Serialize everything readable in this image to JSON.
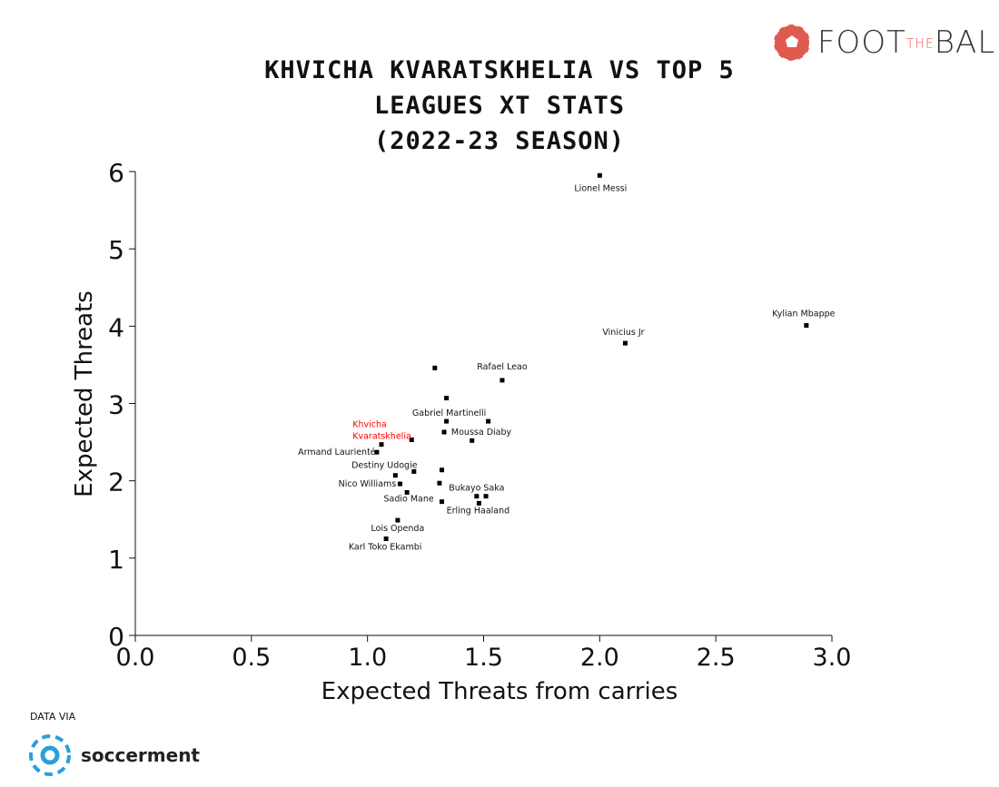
{
  "title_lines": [
    "KHVICHA KVARATSKHELIA VS TOP 5",
    "LEAGUES XT STATS",
    "(2022-23 SEASON)"
  ],
  "brand": {
    "left": "FOOT",
    "middle": "THE",
    "right": "BALL",
    "color": "#e05a4f"
  },
  "footer": {
    "data_via": "DATA VIA",
    "source": "soccerment",
    "source_color": "#2a9fd8"
  },
  "chart_data": {
    "type": "scatter",
    "title": "KHVICHA KVARATSKHELIA VS TOP 5 LEAGUES XT STATS (2022-23 SEASON)",
    "xlabel": "Expected Threats from carries",
    "ylabel": "Expected Threats",
    "xlim": [
      0,
      3.0
    ],
    "ylim": [
      0,
      6
    ],
    "xticks": [
      "0.0",
      "0.5",
      "1.0",
      "1.5",
      "2.0",
      "2.5",
      "3.0"
    ],
    "yticks": [
      "0",
      "1",
      "2",
      "3",
      "4",
      "5",
      "6"
    ],
    "grid": false,
    "highlight_color": "#ff0000",
    "points": [
      {
        "label": "Lionel Messi",
        "x": 2.0,
        "y": 5.95
      },
      {
        "label": "Kylian Mbappe",
        "x": 2.89,
        "y": 4.01
      },
      {
        "label": "Vinicius Jr",
        "x": 2.11,
        "y": 3.78
      },
      {
        "label": "",
        "x": 1.29,
        "y": 3.46
      },
      {
        "label": "Rafael Leao",
        "x": 1.58,
        "y": 3.3
      },
      {
        "label": "",
        "x": 1.34,
        "y": 3.07
      },
      {
        "label": "Gabriel Martinelli",
        "x": 1.34,
        "y": 2.77
      },
      {
        "label": "",
        "x": 1.52,
        "y": 2.77
      },
      {
        "label": "Moussa Diaby",
        "x": 1.33,
        "y": 2.63
      },
      {
        "label": "",
        "x": 1.45,
        "y": 2.52
      },
      {
        "label": "Khvicha Kvaratskhelia",
        "x": 1.19,
        "y": 2.53,
        "highlight": true
      },
      {
        "label": "",
        "x": 1.06,
        "y": 2.47
      },
      {
        "label": "Armand Laurienté",
        "x": 1.04,
        "y": 2.37
      },
      {
        "label": "",
        "x": 1.2,
        "y": 2.12
      },
      {
        "label": "",
        "x": 1.32,
        "y": 2.14
      },
      {
        "label": "Destiny Udogie",
        "x": 1.12,
        "y": 2.07
      },
      {
        "label": "",
        "x": 1.31,
        "y": 1.97
      },
      {
        "label": "Nico Williams",
        "x": 1.14,
        "y": 1.96
      },
      {
        "label": "Sadio Mane",
        "x": 1.17,
        "y": 1.85
      },
      {
        "label": "",
        "x": 1.32,
        "y": 1.73
      },
      {
        "label": "Bukayo Saka",
        "x": 1.47,
        "y": 1.8
      },
      {
        "label": "",
        "x": 1.51,
        "y": 1.8
      },
      {
        "label": "Erling Haaland",
        "x": 1.48,
        "y": 1.71
      },
      {
        "label": "Lois Openda",
        "x": 1.13,
        "y": 1.49
      },
      {
        "label": "Karl Toko Ekambi",
        "x": 1.08,
        "y": 1.25
      }
    ]
  }
}
